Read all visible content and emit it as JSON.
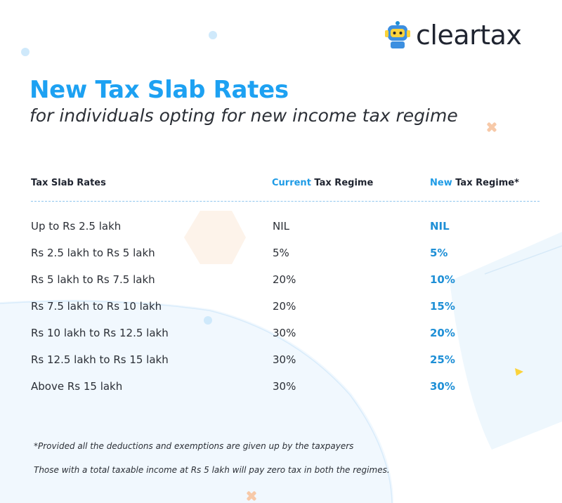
{
  "brand": {
    "name": "cleartax"
  },
  "heading": {
    "title": "New Tax Slab Rates",
    "subtitle": "for individuals opting for new income tax regime"
  },
  "table": {
    "col1_header": "Tax Slab Rates",
    "col2_header_highlight": "Current",
    "col2_header_rest": " Tax Regime",
    "col3_header_highlight": "New",
    "col3_header_rest": " Tax Regime*",
    "rows": [
      {
        "slab": "Up to Rs 2.5 lakh",
        "current": "NIL",
        "new": "NIL"
      },
      {
        "slab": "Rs 2.5 lakh to Rs 5 lakh",
        "current": "5%",
        "new": "5%"
      },
      {
        "slab": "Rs 5 lakh to Rs 7.5 lakh",
        "current": "20%",
        "new": "10%"
      },
      {
        "slab": "Rs 7.5 lakh to Rs 10 lakh",
        "current": "20%",
        "new": "15%"
      },
      {
        "slab": "Rs 10 lakh to Rs 12.5 lakh",
        "current": "30%",
        "new": "20%"
      },
      {
        "slab": "Rs 12.5 lakh to Rs 15 lakh",
        "current": "30%",
        "new": "25%"
      },
      {
        "slab": "Above Rs 15 lakh",
        "current": "30%",
        "new": "30%"
      }
    ]
  },
  "footnotes": {
    "note1": "*Provided all the deductions and exemptions are given up by the taxpayers",
    "note2": "Those with a total taxable income at Rs 5 lakh will pay zero tax in both the regimes."
  },
  "colors": {
    "accent_blue": "#1da1f2",
    "new_regime_blue": "#1e8fd6",
    "decor_orange": "#f7c9a8",
    "decor_yellow": "#fbd33b",
    "text_dark": "#2b2f36"
  }
}
